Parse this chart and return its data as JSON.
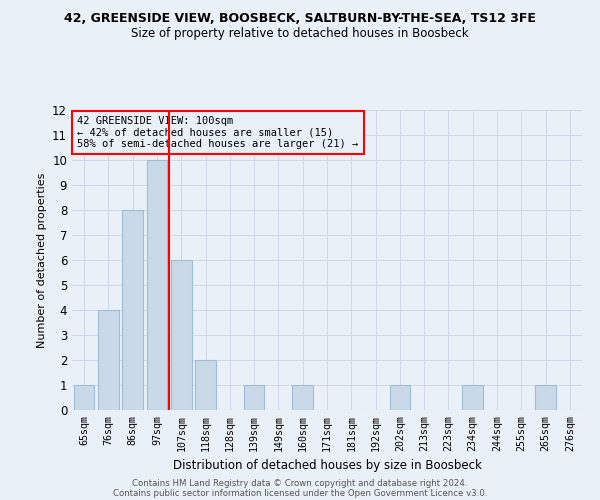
{
  "title1": "42, GREENSIDE VIEW, BOOSBECK, SALTBURN-BY-THE-SEA, TS12 3FE",
  "title2": "Size of property relative to detached houses in Boosbeck",
  "xlabel": "Distribution of detached houses by size in Boosbeck",
  "ylabel": "Number of detached properties",
  "categories": [
    "65sqm",
    "76sqm",
    "86sqm",
    "97sqm",
    "107sqm",
    "118sqm",
    "128sqm",
    "139sqm",
    "149sqm",
    "160sqm",
    "171sqm",
    "181sqm",
    "192sqm",
    "202sqm",
    "213sqm",
    "223sqm",
    "234sqm",
    "244sqm",
    "255sqm",
    "265sqm",
    "276sqm"
  ],
  "values": [
    1,
    4,
    8,
    10,
    6,
    2,
    0,
    1,
    0,
    1,
    0,
    0,
    0,
    1,
    0,
    0,
    1,
    0,
    0,
    1,
    0
  ],
  "bar_color": "#c9d9e8",
  "bar_edgecolor": "#a0bcd4",
  "vline_x": 3.5,
  "vline_color": "red",
  "annotation_line1": "42 GREENSIDE VIEW: 100sqm",
  "annotation_line2": "← 42% of detached houses are smaller (15)",
  "annotation_line3": "58% of semi-detached houses are larger (21) →",
  "annotation_box_color": "red",
  "ylim": [
    0,
    12
  ],
  "yticks": [
    0,
    1,
    2,
    3,
    4,
    5,
    6,
    7,
    8,
    9,
    10,
    11,
    12
  ],
  "grid_color": "#d0d8e8",
  "bg_color": "#eaf0f8",
  "footer1": "Contains HM Land Registry data © Crown copyright and database right 2024.",
  "footer2": "Contains public sector information licensed under the Open Government Licence v3.0."
}
